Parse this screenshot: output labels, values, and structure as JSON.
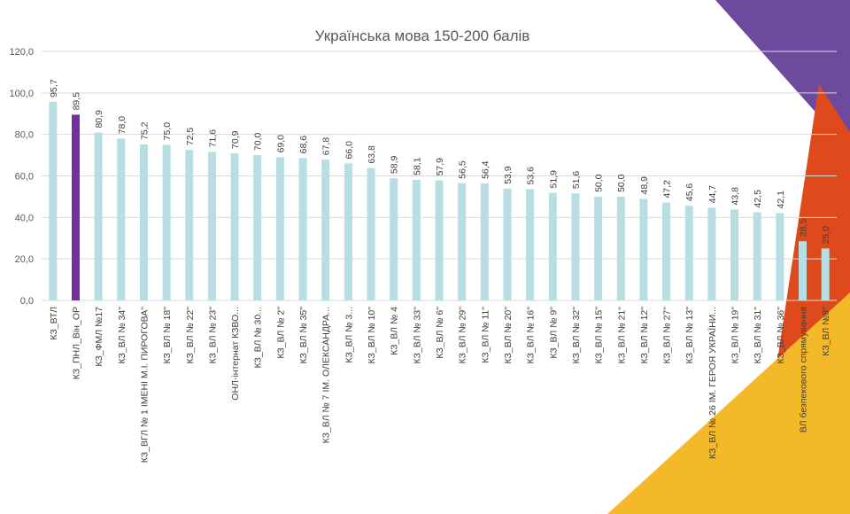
{
  "colors": {
    "bar": "#b7dee3",
    "highlight": "#7030a0",
    "deco_purple": "#6e4a9e",
    "deco_orange": "#de4a1c",
    "deco_yellow": "#f4b928"
  },
  "chart_data": {
    "type": "bar",
    "title": "Українська мова 150-200 балів",
    "ylim": [
      0,
      120
    ],
    "yticks": [
      "0,0",
      "20,0",
      "40,0",
      "60,0",
      "80,0",
      "100,0",
      "120,0"
    ],
    "grid": true,
    "highlight_index": 1,
    "categories": [
      "КЗ_ВТЛ",
      "КЗ_ПНЛ_Він_ОР",
      "КЗ_ФМЛ №17",
      "КЗ_ВЛ № 34\"",
      "КЗ_ВГЛ № 1 ІМЕНІ М.І. ПИРОГОВА\"",
      "КЗ_ВЛ № 18\"",
      "КЗ_ВЛ № 22\"",
      "КЗ_ВЛ № 23\"",
      "ОНЛ-інтернат КЗВО...",
      "КЗ_ВЛ № 30...",
      "КЗ_ВЛ № 2\"",
      "КЗ_ВЛ № 35\"",
      "КЗ_ВЛ № 7 ІМ. ОЛЕКСАНДРА...",
      "КЗ_ВЛ № 3...",
      "КЗ_ВЛ № 10\"",
      "КЗ_ВЛ № 4",
      "КЗ_ВЛ № 33\"",
      "КЗ_ВЛ № 6\"",
      "КЗ_ВЛ № 29\"",
      "КЗ_ВЛ № 11\"",
      "КЗ_ВЛ № 20\"",
      "КЗ_ВЛ № 16\"",
      "КЗ_ВЛ № 9\"",
      "КЗ_ВЛ № 32\"",
      "КЗ_ВЛ № 15\"",
      "КЗ_ВЛ № 21\"",
      "КЗ_ВЛ № 12\"",
      "КЗ_ВЛ № 27\"",
      "КЗ_ВЛ № 13\"",
      "КЗ_ВЛ № 26 ІМ. ГЕРОЯ УКРАЇНИ...",
      "КЗ_ВЛ № 19\"",
      "КЗ_ВЛ № 31\"",
      "КЗ_ВЛ № 36\"",
      "ВЛ безпекового спрямування",
      "КЗ_ВЛ №8\""
    ],
    "values": [
      95.7,
      89.5,
      80.9,
      78.0,
      75.2,
      75.0,
      72.5,
      71.6,
      70.9,
      70.0,
      69.0,
      68.6,
      67.8,
      66.0,
      63.8,
      58.9,
      58.1,
      57.9,
      56.5,
      56.4,
      53.9,
      53.6,
      51.9,
      51.6,
      50.0,
      50.0,
      48.9,
      47.2,
      45.6,
      44.7,
      43.8,
      42.5,
      42.1,
      28.5,
      25.0
    ],
    "value_labels": [
      "95,7",
      "89,5",
      "80,9",
      "78,0",
      "75,2",
      "75,0",
      "72,5",
      "71,6",
      "70,9",
      "70,0",
      "69,0",
      "68,6",
      "67,8",
      "66,0",
      "63,8",
      "58,9",
      "58,1",
      "57,9",
      "56,5",
      "56,4",
      "53,9",
      "53,6",
      "51,9",
      "51,6",
      "50,0",
      "50,0",
      "48,9",
      "47,2",
      "45,6",
      "44,7",
      "43,8",
      "42,5",
      "42,1",
      "28,5",
      "25,0"
    ]
  }
}
